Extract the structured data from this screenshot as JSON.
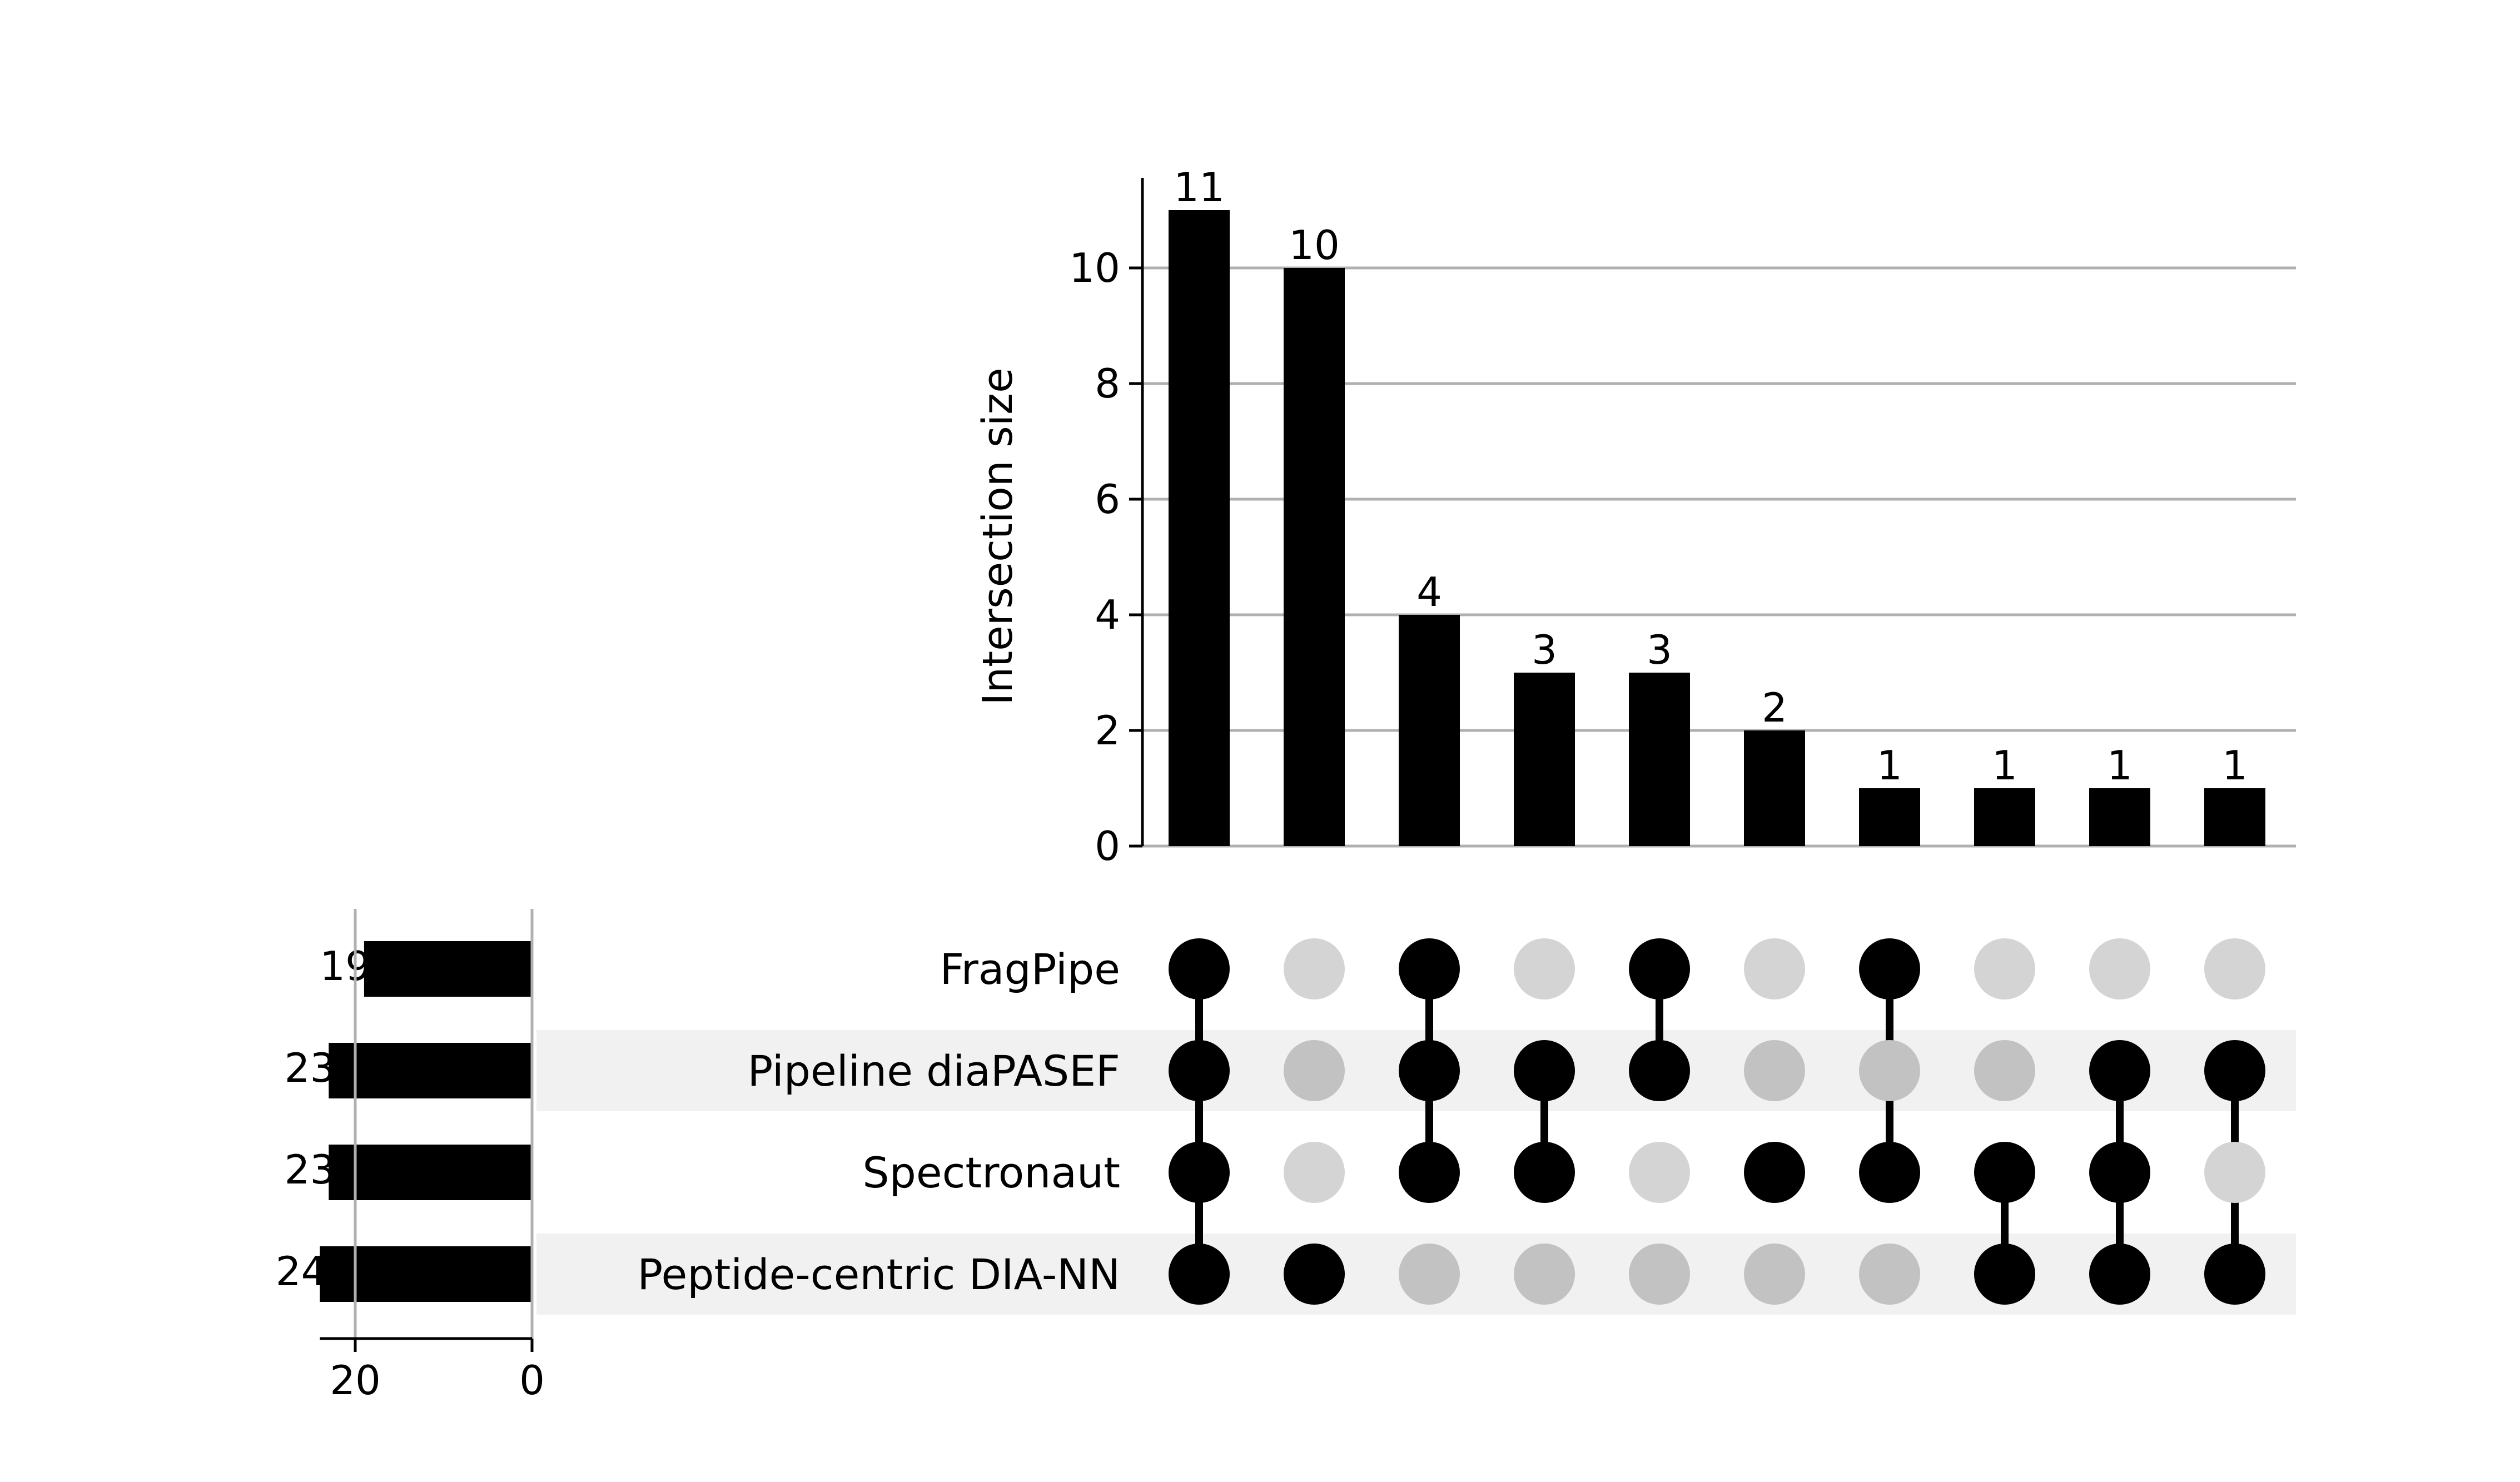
{
  "chart_data": {
    "type": "upset",
    "ylabel": "Intersection size",
    "ylim": [
      0,
      11.5
    ],
    "yticks": [
      0,
      2,
      4,
      6,
      8,
      10
    ],
    "grid": true,
    "sets": [
      {
        "name": "FragPipe",
        "size": 19,
        "size_label": "19"
      },
      {
        "name": "Pipeline diaPASEF",
        "size": 23,
        "size_label": "23"
      },
      {
        "name": "Spectronaut",
        "size": 23,
        "size_label": "23"
      },
      {
        "name": "Peptide-centric DIA-NN",
        "size": 24,
        "size_label": "24"
      }
    ],
    "set_size_axis": {
      "ticks": [
        20,
        0
      ],
      "tick_labels": [
        "20",
        "0"
      ],
      "xlim": [
        24,
        0
      ]
    },
    "intersections": [
      {
        "members": [
          0,
          1,
          2,
          3
        ],
        "value": 11,
        "label": "11"
      },
      {
        "members": [
          3
        ],
        "value": 10,
        "label": "10"
      },
      {
        "members": [
          0,
          1,
          2
        ],
        "value": 4,
        "label": "4"
      },
      {
        "members": [
          1,
          2
        ],
        "value": 3,
        "label": "3"
      },
      {
        "members": [
          0,
          1
        ],
        "value": 3,
        "label": "3"
      },
      {
        "members": [
          2
        ],
        "value": 2,
        "label": "2"
      },
      {
        "members": [
          0,
          2
        ],
        "value": 1,
        "label": "1"
      },
      {
        "members": [
          2,
          3
        ],
        "value": 1,
        "label": "1"
      },
      {
        "members": [
          1,
          2,
          3
        ],
        "value": 1,
        "label": "1"
      },
      {
        "members": [
          1,
          3
        ],
        "value": 1,
        "label": "1"
      }
    ],
    "colors": {
      "bar": "#000000",
      "dot_active": "#000000",
      "dot_inactive_light": "#d4d4d4",
      "dot_inactive_dark": "#c2c2c2",
      "stripe": "#f1f1f1",
      "grid": "#b0b0b0"
    }
  }
}
